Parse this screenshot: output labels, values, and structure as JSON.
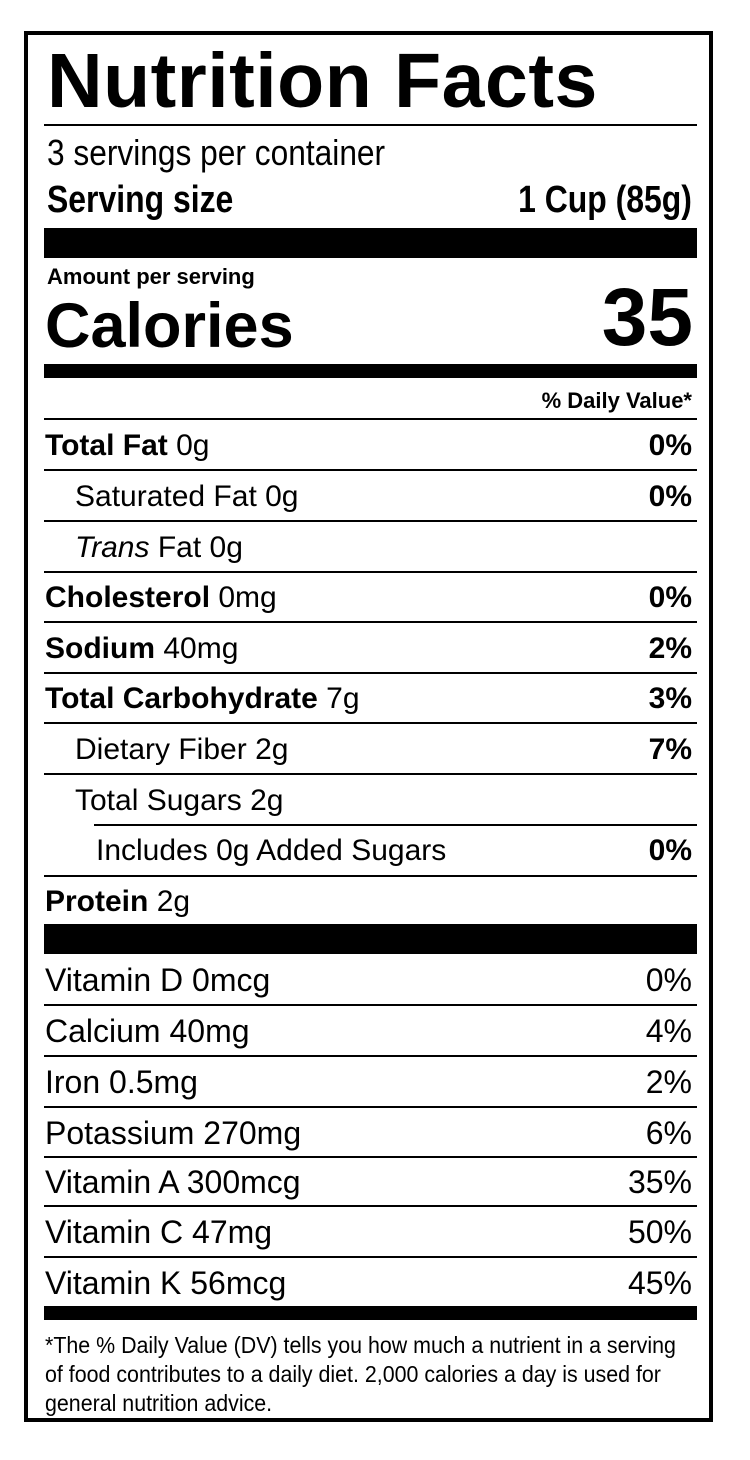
{
  "label": {
    "title": "Nutrition Facts",
    "servings_per_container": "3 servings per container",
    "serving_size_label": "Serving size",
    "serving_size_value": "1 Cup (85g)",
    "amount_per_serving": "Amount per serving",
    "calories_label": "Calories",
    "calories_value": "35",
    "daily_value_header": "% Daily Value*"
  },
  "nutrients": {
    "total_fat": {
      "name": "Total Fat",
      "amount": "0g",
      "dv": "0%"
    },
    "saturated_fat": {
      "name": "Saturated Fat",
      "amount": "0g",
      "dv": "0%"
    },
    "trans_fat": {
      "name_italic": "Trans",
      "name_rest": "Fat",
      "amount": "0g"
    },
    "cholesterol": {
      "name": "Cholesterol",
      "amount": "0mg",
      "dv": "0%"
    },
    "sodium": {
      "name": "Sodium",
      "amount": "40mg",
      "dv": "2%"
    },
    "total_carbohydrate": {
      "name": "Total Carbohydrate",
      "amount": "7g",
      "dv": "3%"
    },
    "dietary_fiber": {
      "name": "Dietary Fiber",
      "amount": "2g",
      "dv": "7%"
    },
    "total_sugars": {
      "name": "Total Sugars",
      "amount": "2g"
    },
    "added_sugars": {
      "text": "Includes 0g Added Sugars",
      "dv": "0%"
    },
    "protein": {
      "name": "Protein",
      "amount": "2g"
    }
  },
  "vitamins": [
    {
      "name": "Vitamin D",
      "amount": "0mcg",
      "dv": "0%"
    },
    {
      "name": "Calcium",
      "amount": "40mg",
      "dv": "4%"
    },
    {
      "name": "Iron",
      "amount": "0.5mg",
      "dv": "2%"
    },
    {
      "name": "Potassium",
      "amount": "270mg",
      "dv": "6%"
    },
    {
      "name": "Vitamin A",
      "amount": "300mcg",
      "dv": "35%"
    },
    {
      "name": "Vitamin C",
      "amount": "47mg",
      "dv": "50%"
    },
    {
      "name": "Vitamin K",
      "amount": "56mcg",
      "dv": "45%"
    }
  ],
  "footnote": "*The % Daily Value (DV) tells you how much a nutrient in a serving of food contributes to a daily diet. 2,000 calories a day is used for general nutrition advice."
}
